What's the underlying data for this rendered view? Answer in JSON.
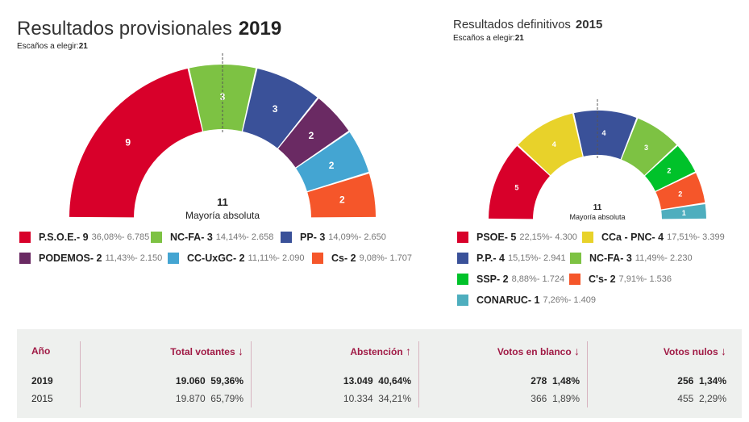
{
  "left": {
    "title": "Resultados provisionales",
    "year": "2019",
    "seats_label": "Escaños a elegir:",
    "seats": "21",
    "majority": "11",
    "majority_label": "Mayoría absoluta"
  },
  "right": {
    "title": "Resultados definitivos",
    "year": "2015",
    "seats_label": "Escaños a elegir:",
    "seats": "21",
    "majority": "11",
    "majority_label": "Mayoría absoluta"
  },
  "chart_data": [
    {
      "type": "hemicycle",
      "total_seats": 21,
      "majority": 11,
      "parties": [
        {
          "name": "P.S.O.E.",
          "seats": 9,
          "pct": "36,08%",
          "votes": "6.785",
          "color": "#d8002a"
        },
        {
          "name": "NC-FA",
          "seats": 3,
          "pct": "14,14%",
          "votes": "2.658",
          "color": "#7dc243"
        },
        {
          "name": "PP",
          "seats": 3,
          "pct": "14,09%",
          "votes": "2.650",
          "color": "#3a5199"
        },
        {
          "name": "PODEMOS",
          "seats": 2,
          "pct": "11,43%",
          "votes": "2.150",
          "color": "#6a2a63"
        },
        {
          "name": "CC-UxGC",
          "seats": 2,
          "pct": "11,11%",
          "votes": "2.090",
          "color": "#44a5d2"
        },
        {
          "name": "Cs",
          "seats": 2,
          "pct": "9,08%",
          "votes": "1.707",
          "color": "#f5562a"
        }
      ]
    },
    {
      "type": "hemicycle",
      "total_seats": 21,
      "majority": 11,
      "parties": [
        {
          "name": "PSOE",
          "seats": 5,
          "pct": "22,15%",
          "votes": "4.300",
          "color": "#d8002a"
        },
        {
          "name": "CCa - PNC",
          "seats": 4,
          "pct": "17,51%",
          "votes": "3.399",
          "color": "#e8d22a"
        },
        {
          "name": "P.P.",
          "seats": 4,
          "pct": "15,15%",
          "votes": "2.941",
          "color": "#3a5199"
        },
        {
          "name": "NC-FA",
          "seats": 3,
          "pct": "11,49%",
          "votes": "2.230",
          "color": "#7dc243"
        },
        {
          "name": "SSP",
          "seats": 2,
          "pct": "8,88%",
          "votes": "1.724",
          "color": "#00c22a"
        },
        {
          "name": "C's",
          "seats": 2,
          "pct": "7,91%",
          "votes": "1.536",
          "color": "#f5562a"
        },
        {
          "name": "CONARUC",
          "seats": 1,
          "pct": "7,26%",
          "votes": "1.409",
          "color": "#4eaebe"
        }
      ]
    }
  ],
  "table": {
    "headers": [
      "Año",
      "Total votantes",
      "Abstención",
      "Votos en blanco",
      "Votos nulos"
    ],
    "arrows": [
      "",
      "↓",
      "↑",
      "↓",
      "↓"
    ],
    "rows": [
      [
        "2019",
        "19.060",
        "59,36%",
        "13.049",
        "40,64%",
        "278",
        "1,48%",
        "256",
        "1,34%"
      ],
      [
        "2015",
        "19.870",
        "65,79%",
        "10.334",
        "34,21%",
        "366",
        "1,89%",
        "455",
        "2,29%"
      ]
    ]
  }
}
